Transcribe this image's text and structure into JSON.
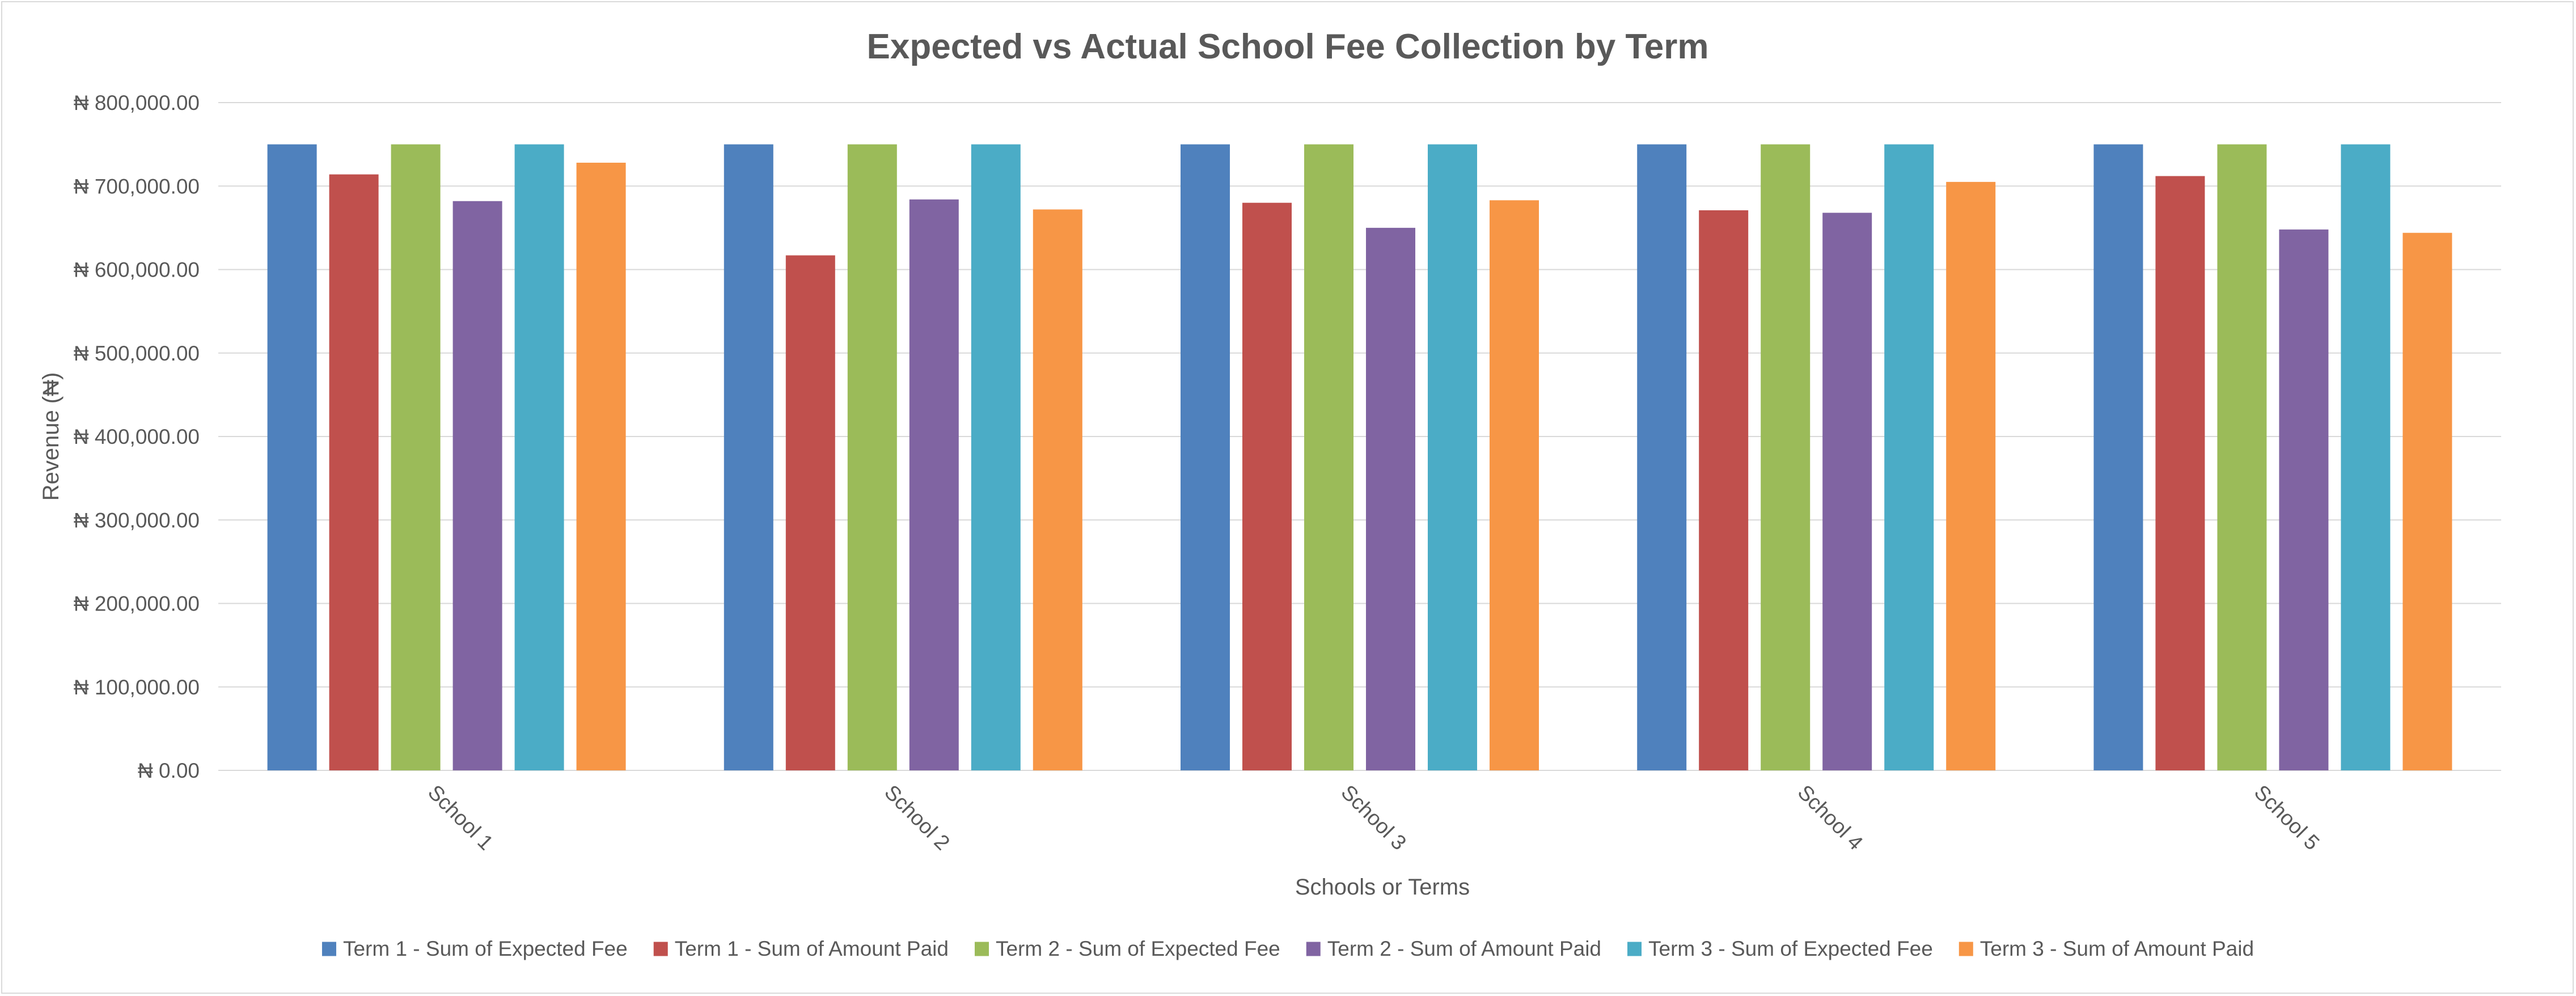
{
  "chart_data": {
    "type": "bar",
    "title": "Expected vs Actual School Fee Collection by Term",
    "xlabel": "Schools or Terms",
    "ylabel": "Revenue (₦)",
    "ylim": [
      0,
      800000
    ],
    "y_ticks": [
      0,
      100000,
      200000,
      300000,
      400000,
      500000,
      600000,
      700000,
      800000
    ],
    "y_tick_labels": [
      "₦ 0.00",
      "₦ 100,000.00",
      "₦ 200,000.00",
      "₦ 300,000.00",
      "₦ 400,000.00",
      "₦ 500,000.00",
      "₦ 600,000.00",
      "₦ 700,000.00",
      "₦ 800,000.00"
    ],
    "categories": [
      "School 1",
      "School 2",
      "School 3",
      "School 4",
      "School 5"
    ],
    "series": [
      {
        "name": "Term 1 - Sum of Expected Fee",
        "color": "#4F81BD",
        "values": [
          750000,
          750000,
          750000,
          750000,
          750000
        ]
      },
      {
        "name": "Term 1 - Sum of Amount Paid",
        "color": "#C0504D",
        "values": [
          714000,
          617000,
          680000,
          671000,
          712000
        ]
      },
      {
        "name": "Term 2 - Sum of Expected Fee",
        "color": "#9BBB59",
        "values": [
          750000,
          750000,
          750000,
          750000,
          750000
        ]
      },
      {
        "name": "Term 2 - Sum of Amount Paid",
        "color": "#8064A2",
        "values": [
          682000,
          684000,
          650000,
          668000,
          648000
        ]
      },
      {
        "name": "Term 3 - Sum of Expected Fee",
        "color": "#4BACC6",
        "values": [
          750000,
          750000,
          750000,
          750000,
          750000
        ]
      },
      {
        "name": "Term 3 - Sum of Amount Paid",
        "color": "#F79646",
        "values": [
          728000,
          672000,
          683000,
          705000,
          644000
        ]
      }
    ],
    "grid": true,
    "legend_position": "bottom"
  }
}
